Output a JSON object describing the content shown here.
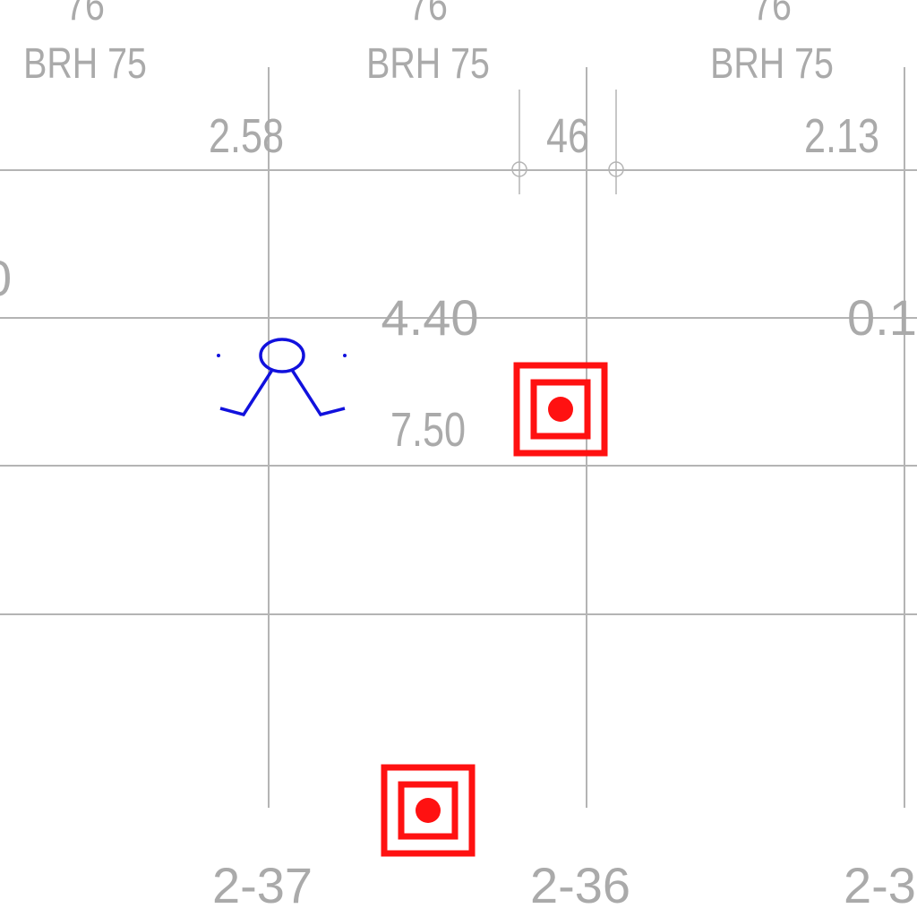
{
  "drawing": {
    "top_labels": [
      {
        "number": "76",
        "code": "BRH 75"
      },
      {
        "number": "76",
        "code": "BRH 75"
      },
      {
        "number": "76",
        "code": "BRH 75"
      }
    ],
    "dimensions": {
      "left": "2.58",
      "middle": "46",
      "right": "2.13",
      "center": "4.40",
      "center_secondary": "7.50",
      "right_cut": "0.1",
      "left_cut": "0"
    },
    "axes": {
      "a": "2-37",
      "b": "2-36",
      "c": "2-3"
    },
    "symbols": {
      "blue_symbol": "blue-figure-icon",
      "red_symbol": "red-target-icon",
      "red_color": "#ff1111",
      "blue_color": "#1111dd"
    }
  }
}
